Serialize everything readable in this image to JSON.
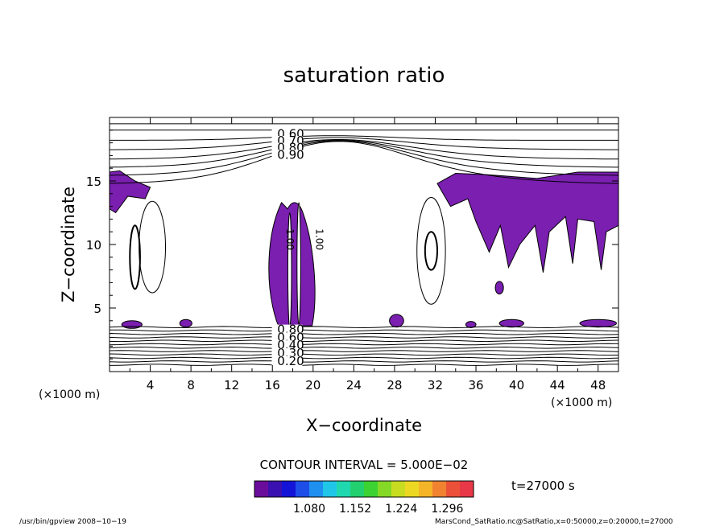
{
  "chart_data": {
    "type": "contour",
    "title": "saturation ratio",
    "xlabel": "X−coordinate",
    "ylabel": "Z−coordinate",
    "x_unit": "(×1000 m)",
    "y_unit": "(×1000 m)",
    "xlim": [
      0,
      50
    ],
    "ylim": [
      0,
      20
    ],
    "x_ticks": [
      4,
      8,
      12,
      16,
      20,
      24,
      28,
      32,
      36,
      40,
      44,
      48
    ],
    "y_ticks": [
      5,
      10,
      15
    ],
    "contour_interval_text": "CONTOUR INTERVAL = 5.000E−02",
    "time_text": "t=27000 s",
    "contour_labels_top": [
      "0.60",
      "0.70",
      "0.80",
      "0.90"
    ],
    "contour_labels_bottom": [
      "0.80",
      "0.60",
      "0.40",
      "0.30",
      "0.20"
    ],
    "contour_labels_center": [
      "1.00",
      "1.00"
    ],
    "colorbar": {
      "tick_labels": [
        "1.080",
        "1.152",
        "1.224",
        "1.296"
      ],
      "colors": [
        "#6a0d9a",
        "#3b10b0",
        "#1414d8",
        "#1d4fe8",
        "#1f8ff0",
        "#20c6e8",
        "#20d8b0",
        "#22d070",
        "#3cd232",
        "#86d826",
        "#c8dc22",
        "#ecd822",
        "#f4b428",
        "#f08230",
        "#ec5038",
        "#e83848"
      ]
    },
    "fill_color": "#7a1fb0",
    "footer_left": "/usr/bin/gpview   2008−10−19",
    "footer_right": "MarsCond_SatRatio.nc@SatRatio,x=0:50000,z=0:20000,t=27000"
  }
}
